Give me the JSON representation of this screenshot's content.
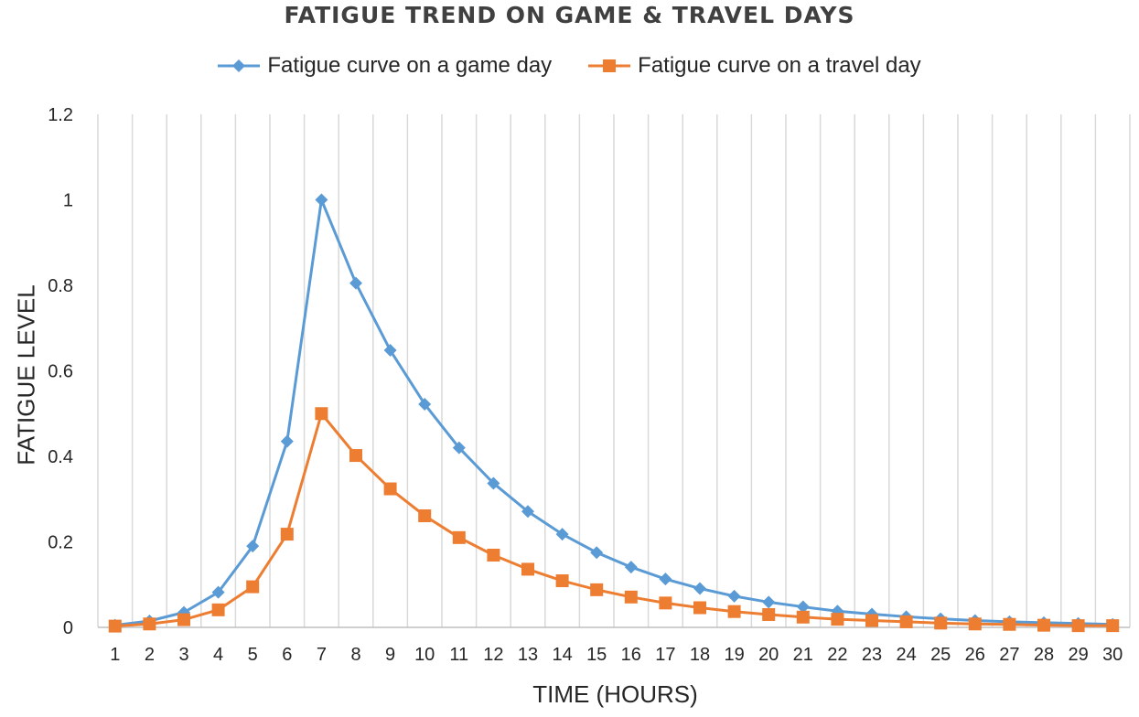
{
  "chart_data": {
    "type": "line",
    "title": "FATIGUE TREND ON GAME & TRAVEL DAYS",
    "xlabel": "TIME (HOURS)",
    "ylabel": "FATIGUE LEVEL",
    "categories": [
      "1",
      "2",
      "3",
      "4",
      "5",
      "6",
      "7",
      "8",
      "9",
      "10",
      "11",
      "12",
      "13",
      "14",
      "15",
      "16",
      "17",
      "18",
      "19",
      "20",
      "21",
      "22",
      "23",
      "24",
      "25",
      "26",
      "27",
      "28",
      "29",
      "30"
    ],
    "ylim": [
      0,
      1.2
    ],
    "yticks": [
      "0",
      "0.2",
      "0.4",
      "0.6",
      "0.8",
      "1",
      "1.2"
    ],
    "grid": "vertical",
    "legend_position": "top",
    "series": [
      {
        "name": "Fatigue curve on a game day",
        "color": "#5B9BD5",
        "marker": "diamond",
        "values": [
          0.005,
          0.015,
          0.035,
          0.082,
          0.19,
          0.435,
          1.0,
          0.805,
          0.648,
          0.522,
          0.42,
          0.337,
          0.271,
          0.218,
          0.175,
          0.141,
          0.113,
          0.091,
          0.073,
          0.059,
          0.048,
          0.038,
          0.031,
          0.025,
          0.02,
          0.016,
          0.013,
          0.011,
          0.009,
          0.007
        ]
      },
      {
        "name": "Fatigue curve on a travel day",
        "color": "#ED7D31",
        "marker": "square",
        "values": [
          0.003,
          0.008,
          0.018,
          0.041,
          0.095,
          0.218,
          0.5,
          0.402,
          0.324,
          0.261,
          0.21,
          0.169,
          0.136,
          0.109,
          0.088,
          0.071,
          0.057,
          0.046,
          0.037,
          0.03,
          0.024,
          0.019,
          0.016,
          0.013,
          0.01,
          0.008,
          0.007,
          0.005,
          0.004,
          0.004
        ]
      }
    ]
  }
}
